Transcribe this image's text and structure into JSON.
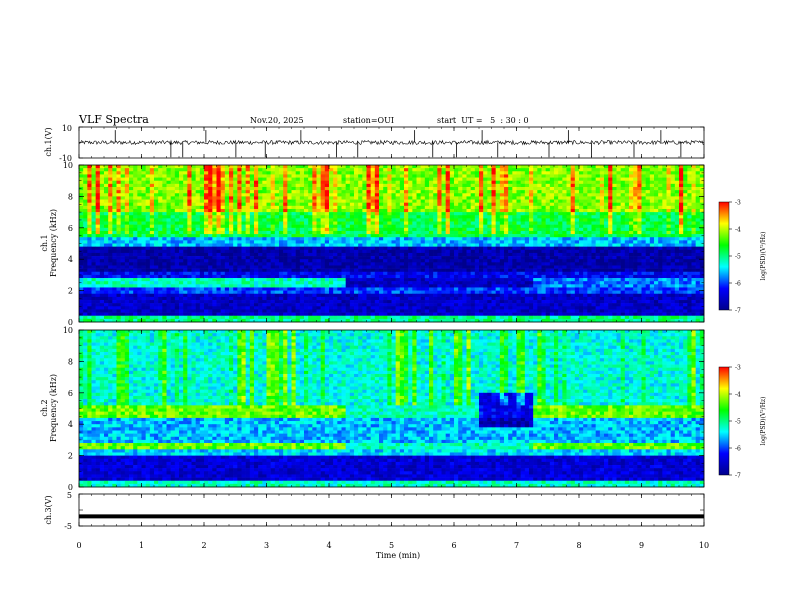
{
  "header": {
    "title": "VLF Spectra",
    "date": "Nov.20, 2025",
    "station": "station=OUI",
    "start": "start  UT =   5  : 30 : 0"
  },
  "chart_data": [
    {
      "id": "ch1-waveform",
      "type": "line",
      "title": "",
      "ylabel": "ch.1(V)",
      "ylim": [
        -10,
        10
      ],
      "yticks": [
        "10",
        "-10"
      ],
      "xlim": [
        0,
        10
      ],
      "baseline": 0,
      "noise_amplitude": 1.3,
      "spike_times": [
        0.58,
        1.47,
        1.66,
        2.03,
        2.51,
        2.98,
        3.55,
        4.12,
        4.46,
        5.37,
        5.66,
        6.04,
        6.45,
        6.7,
        7.52,
        7.83,
        8.2,
        8.88,
        9.31,
        9.63
      ]
    },
    {
      "id": "ch1-spectrogram",
      "type": "heatmap",
      "ylabel_line1": "ch.1",
      "ylabel_line2": "Frequency (kHz)",
      "ylim": [
        0,
        10
      ],
      "yticks": [
        "0",
        "2",
        "4",
        "6",
        "8",
        "10"
      ],
      "xlim": [
        0,
        10
      ],
      "colorbar": {
        "range": [
          -7,
          -3
        ],
        "ticks": [
          "-3",
          "-4",
          "-5",
          "-6",
          "-7"
        ],
        "label": "log(PSD)(V²/Hz)"
      },
      "bands_khz": [
        {
          "from": 0,
          "to": 0.5,
          "level": -5.0
        },
        {
          "from": 0.5,
          "to": 1.8,
          "level": -6.6
        },
        {
          "from": 1.8,
          "to": 2.3,
          "level": -6.0
        },
        {
          "from": 2.3,
          "to": 2.8,
          "level": -5.2
        },
        {
          "from": 2.8,
          "to": 3.3,
          "level": -6.3
        },
        {
          "from": 3.3,
          "to": 4.8,
          "level": -6.8
        },
        {
          "from": 4.8,
          "to": 5.5,
          "level": -5.6
        },
        {
          "from": 5.5,
          "to": 7.0,
          "level": -4.8
        },
        {
          "from": 7.0,
          "to": 10.0,
          "level": -4.2
        }
      ],
      "regimes_min": [
        {
          "from": 0,
          "to": 4.3,
          "note": "emission band 2.3-2.8 kHz present"
        },
        {
          "from": 4.3,
          "to": 7.3,
          "note": "emission band absent"
        },
        {
          "from": 7.3,
          "to": 10,
          "note": "weak emission band"
        }
      ]
    },
    {
      "id": "ch2-spectrogram",
      "type": "heatmap",
      "ylabel_line1": "ch.2",
      "ylabel_line2": "Frequency (kHz)",
      "ylim": [
        0,
        10
      ],
      "yticks": [
        "0",
        "2",
        "4",
        "6",
        "8",
        "10"
      ],
      "xlim": [
        0,
        10
      ],
      "colorbar": {
        "range": [
          -7,
          -3
        ],
        "ticks": [
          "-3",
          "-4",
          "-5",
          "-6",
          "-7"
        ],
        "label": "log(PSD)(V²/Hz)"
      },
      "bands_khz": [
        {
          "from": 0,
          "to": 0.5,
          "level": -5.2
        },
        {
          "from": 0.5,
          "to": 2.0,
          "level": -6.5
        },
        {
          "from": 2.0,
          "to": 2.4,
          "level": -5.5
        },
        {
          "from": 2.4,
          "to": 2.9,
          "level": -4.3
        },
        {
          "from": 2.9,
          "to": 4.5,
          "level": -5.6
        },
        {
          "from": 4.5,
          "to": 5.2,
          "level": -4.3
        },
        {
          "from": 5.2,
          "to": 10.0,
          "level": -5.3
        }
      ],
      "regimes_min": [
        {
          "from": 0,
          "to": 4.3,
          "note": "strong bands near 2.6 and 4.8 kHz"
        },
        {
          "from": 4.3,
          "to": 7.3,
          "note": "bands weaker, depleted near 4-6 kHz after 6.4 min"
        },
        {
          "from": 7.3,
          "to": 10,
          "note": "bands return"
        }
      ]
    },
    {
      "id": "ch3-waveform",
      "type": "line",
      "ylabel": "ch.3(V)",
      "ylim": [
        -5,
        5
      ],
      "yticks": [
        "5",
        "-5"
      ],
      "xlim": [
        0,
        10
      ],
      "baseline": -2.0,
      "noise_amplitude": 0.15
    }
  ],
  "xaxis": {
    "label": "Time (min)",
    "ticks": [
      "0",
      "1",
      "2",
      "3",
      "4",
      "5",
      "6",
      "7",
      "8",
      "9",
      "10"
    ]
  },
  "colors": {
    "colormap": [
      "#00008c",
      "#0000ff",
      "#00ffff",
      "#00ff00",
      "#ffff00",
      "#ff0000"
    ],
    "trace": "#000000"
  }
}
